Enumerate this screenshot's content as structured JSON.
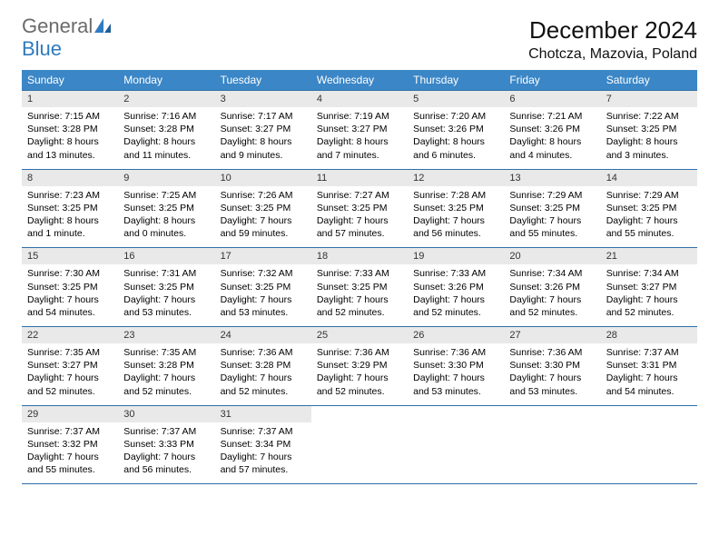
{
  "brand": {
    "word1": "General",
    "word2": "Blue"
  },
  "title": "December 2024",
  "location": "Chotcza, Mazovia, Poland",
  "colors": {
    "header_bg": "#3b86c6",
    "header_text": "#ffffff",
    "daynum_bg": "#e9e9e9",
    "border": "#2f6fa8",
    "logo_gray": "#6b6b6b",
    "logo_blue": "#2f7bbf"
  },
  "weekdays": [
    "Sunday",
    "Monday",
    "Tuesday",
    "Wednesday",
    "Thursday",
    "Friday",
    "Saturday"
  ],
  "days": {
    "1": {
      "sunrise": "7:15 AM",
      "sunset": "3:28 PM",
      "daylight": "8 hours and 13 minutes."
    },
    "2": {
      "sunrise": "7:16 AM",
      "sunset": "3:28 PM",
      "daylight": "8 hours and 11 minutes."
    },
    "3": {
      "sunrise": "7:17 AM",
      "sunset": "3:27 PM",
      "daylight": "8 hours and 9 minutes."
    },
    "4": {
      "sunrise": "7:19 AM",
      "sunset": "3:27 PM",
      "daylight": "8 hours and 7 minutes."
    },
    "5": {
      "sunrise": "7:20 AM",
      "sunset": "3:26 PM",
      "daylight": "8 hours and 6 minutes."
    },
    "6": {
      "sunrise": "7:21 AM",
      "sunset": "3:26 PM",
      "daylight": "8 hours and 4 minutes."
    },
    "7": {
      "sunrise": "7:22 AM",
      "sunset": "3:25 PM",
      "daylight": "8 hours and 3 minutes."
    },
    "8": {
      "sunrise": "7:23 AM",
      "sunset": "3:25 PM",
      "daylight": "8 hours and 1 minute."
    },
    "9": {
      "sunrise": "7:25 AM",
      "sunset": "3:25 PM",
      "daylight": "8 hours and 0 minutes."
    },
    "10": {
      "sunrise": "7:26 AM",
      "sunset": "3:25 PM",
      "daylight": "7 hours and 59 minutes."
    },
    "11": {
      "sunrise": "7:27 AM",
      "sunset": "3:25 PM",
      "daylight": "7 hours and 57 minutes."
    },
    "12": {
      "sunrise": "7:28 AM",
      "sunset": "3:25 PM",
      "daylight": "7 hours and 56 minutes."
    },
    "13": {
      "sunrise": "7:29 AM",
      "sunset": "3:25 PM",
      "daylight": "7 hours and 55 minutes."
    },
    "14": {
      "sunrise": "7:29 AM",
      "sunset": "3:25 PM",
      "daylight": "7 hours and 55 minutes."
    },
    "15": {
      "sunrise": "7:30 AM",
      "sunset": "3:25 PM",
      "daylight": "7 hours and 54 minutes."
    },
    "16": {
      "sunrise": "7:31 AM",
      "sunset": "3:25 PM",
      "daylight": "7 hours and 53 minutes."
    },
    "17": {
      "sunrise": "7:32 AM",
      "sunset": "3:25 PM",
      "daylight": "7 hours and 53 minutes."
    },
    "18": {
      "sunrise": "7:33 AM",
      "sunset": "3:25 PM",
      "daylight": "7 hours and 52 minutes."
    },
    "19": {
      "sunrise": "7:33 AM",
      "sunset": "3:26 PM",
      "daylight": "7 hours and 52 minutes."
    },
    "20": {
      "sunrise": "7:34 AM",
      "sunset": "3:26 PM",
      "daylight": "7 hours and 52 minutes."
    },
    "21": {
      "sunrise": "7:34 AM",
      "sunset": "3:27 PM",
      "daylight": "7 hours and 52 minutes."
    },
    "22": {
      "sunrise": "7:35 AM",
      "sunset": "3:27 PM",
      "daylight": "7 hours and 52 minutes."
    },
    "23": {
      "sunrise": "7:35 AM",
      "sunset": "3:28 PM",
      "daylight": "7 hours and 52 minutes."
    },
    "24": {
      "sunrise": "7:36 AM",
      "sunset": "3:28 PM",
      "daylight": "7 hours and 52 minutes."
    },
    "25": {
      "sunrise": "7:36 AM",
      "sunset": "3:29 PM",
      "daylight": "7 hours and 52 minutes."
    },
    "26": {
      "sunrise": "7:36 AM",
      "sunset": "3:30 PM",
      "daylight": "7 hours and 53 minutes."
    },
    "27": {
      "sunrise": "7:36 AM",
      "sunset": "3:30 PM",
      "daylight": "7 hours and 53 minutes."
    },
    "28": {
      "sunrise": "7:37 AM",
      "sunset": "3:31 PM",
      "daylight": "7 hours and 54 minutes."
    },
    "29": {
      "sunrise": "7:37 AM",
      "sunset": "3:32 PM",
      "daylight": "7 hours and 55 minutes."
    },
    "30": {
      "sunrise": "7:37 AM",
      "sunset": "3:33 PM",
      "daylight": "7 hours and 56 minutes."
    },
    "31": {
      "sunrise": "7:37 AM",
      "sunset": "3:34 PM",
      "daylight": "7 hours and 57 minutes."
    }
  },
  "layout": {
    "first_weekday_index": 0,
    "num_days": 31,
    "cols": 7
  }
}
